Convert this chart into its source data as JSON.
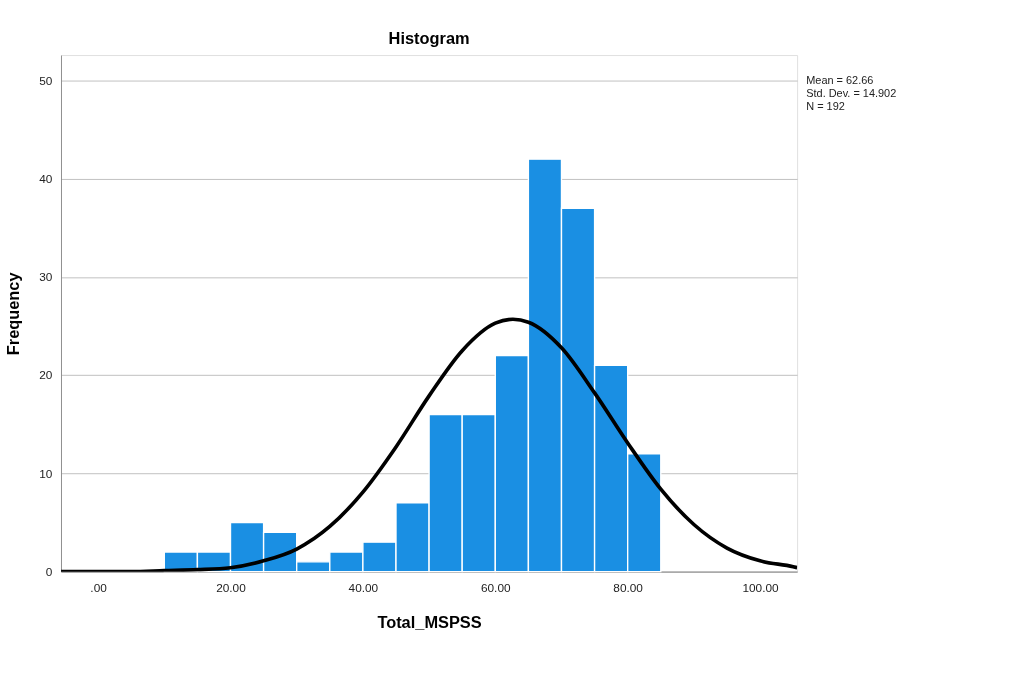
{
  "chart_data": {
    "type": "histogram",
    "title": "Histogram",
    "xlabel": "Total_MSPSS",
    "ylabel": "Frequency",
    "bins": [
      10,
      15,
      20,
      25,
      30,
      35,
      40,
      45,
      50,
      55,
      60,
      65,
      70,
      75,
      80,
      85
    ],
    "values": [
      2,
      2,
      5,
      4,
      1,
      2,
      3,
      7,
      16,
      16,
      22,
      42,
      37,
      21,
      12
    ],
    "color": "#1a8fe3",
    "series": [
      {
        "type": "line",
        "color": "#000000",
        "x": [
          -5.6,
          0,
          5,
          10,
          15,
          20,
          25,
          30,
          35,
          40,
          45,
          50,
          55,
          60,
          62.66,
          65,
          70,
          75,
          80,
          85,
          90,
          95,
          100,
          105,
          105.6
        ],
        "values": [
          0.0,
          0.0,
          0.0,
          0.1,
          0.2,
          0.4,
          1.1,
          2.3,
          4.6,
          8.1,
          12.7,
          17.9,
          22.5,
          25.3,
          25.7,
          25.4,
          22.8,
          18.2,
          13.1,
          8.4,
          4.8,
          2.4,
          1.1,
          0.5,
          0.4
        ]
      }
    ],
    "xlim": [
      -5.6,
      105.6
    ],
    "xticks": [
      {
        "value": 0,
        "label": ".00"
      },
      {
        "value": 20,
        "label": "20.00"
      },
      {
        "value": 40,
        "label": "40.00"
      },
      {
        "value": 60,
        "label": "60.00"
      },
      {
        "value": 80,
        "label": "80.00"
      },
      {
        "value": 100,
        "label": "100.00"
      }
    ],
    "ylim": [
      0,
      52.6
    ],
    "yticks": [
      0,
      10,
      20,
      30,
      40,
      50
    ],
    "grid": "y",
    "annotations": [
      "Mean = 62.66",
      "Std. Dev. = 14.902",
      "N = 192"
    ]
  }
}
